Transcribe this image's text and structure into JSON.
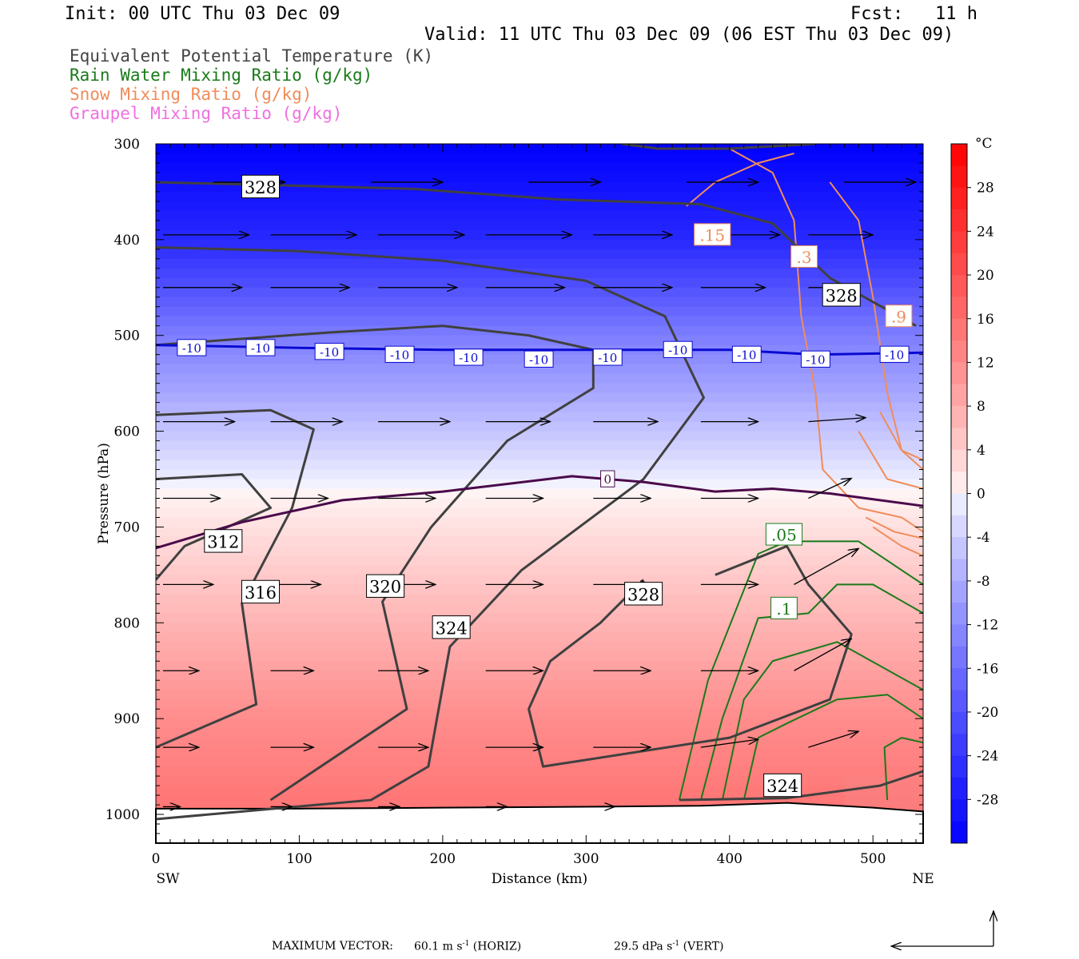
{
  "header": {
    "init": "Init: 00 UTC Thu 03 Dec 09",
    "fcst": "Fcst:   11 h",
    "valid": "Valid: 11 UTC Thu 03 Dec 09 (06 EST Thu 03 Dec 09)"
  },
  "legend": [
    {
      "label": "Equivalent Potential Temperature (K)",
      "color": "#444444"
    },
    {
      "label": "Rain Water Mixing Ratio (g/kg)",
      "color": "#1a7a1a"
    },
    {
      "label": "Snow Mixing Ratio (g/kg)",
      "color": "#f08c5a"
    },
    {
      "label": "Graupel Mixing Ratio (g/kg)",
      "color": "#f070e0"
    }
  ],
  "chart_data": {
    "type": "cross-section",
    "xlabel": "Distance (km)",
    "ylabel": "Pressure (hPa)",
    "x_ticks": [
      "0",
      "100",
      "200",
      "300",
      "400",
      "500"
    ],
    "y_ticks": [
      "300",
      "400",
      "500",
      "600",
      "700",
      "800",
      "900",
      "1000"
    ],
    "xlim": [
      0,
      535
    ],
    "ylim": [
      1030,
      300
    ],
    "x_ends": {
      "left": "SW",
      "right": "NE"
    },
    "colorbar": {
      "unit": "°C",
      "labels": [
        "28",
        "24",
        "20",
        "16",
        "12",
        "8",
        "4",
        "0",
        "-4",
        "-8",
        "-12",
        "-16",
        "-20",
        "-24",
        "-28"
      ],
      "range": [
        -32,
        32
      ],
      "cold_color": "#0000ff",
      "warm_color": "#ff0000"
    },
    "temperature_profile": [
      {
        "p": 300,
        "t": -32
      },
      {
        "p": 400,
        "t": -26
      },
      {
        "p": 500,
        "t": -14
      },
      {
        "p": 600,
        "t": -5
      },
      {
        "p": 660,
        "t": 0
      },
      {
        "p": 700,
        "t": 2
      },
      {
        "p": 800,
        "t": 7
      },
      {
        "p": 900,
        "t": 12
      },
      {
        "p": 990,
        "t": 15
      }
    ],
    "theta_e_contours": [
      {
        "value": "328",
        "points": [
          [
            0,
            340
          ],
          [
            80,
            343
          ],
          [
            180,
            347
          ],
          [
            280,
            358
          ],
          [
            380,
            363
          ],
          [
            430,
            383
          ],
          [
            470,
            440
          ],
          [
            530,
            490
          ]
        ]
      },
      {
        "value": "324",
        "points": [
          [
            0,
            408
          ],
          [
            100,
            412
          ],
          [
            200,
            422
          ],
          [
            300,
            443
          ],
          [
            355,
            480
          ],
          [
            382,
            565
          ],
          [
            340,
            650
          ],
          [
            255,
            745
          ],
          [
            205,
            825
          ],
          [
            190,
            950
          ],
          [
            150,
            985
          ],
          [
            0,
            1005
          ]
        ]
      },
      {
        "value": "320",
        "points": [
          [
            0,
            510
          ],
          [
            120,
            497
          ],
          [
            200,
            490
          ],
          [
            260,
            500
          ],
          [
            305,
            515
          ],
          [
            305,
            555
          ],
          [
            245,
            610
          ],
          [
            192,
            700
          ],
          [
            158,
            778
          ],
          [
            175,
            890
          ],
          [
            80,
            985
          ]
        ]
      },
      {
        "value": "316",
        "points": [
          [
            0,
            583
          ],
          [
            80,
            578
          ],
          [
            110,
            598
          ],
          [
            95,
            680
          ],
          [
            60,
            780
          ],
          [
            70,
            885
          ],
          [
            0,
            930
          ]
        ]
      },
      {
        "value": "312",
        "points": [
          [
            0,
            650
          ],
          [
            60,
            645
          ],
          [
            80,
            680
          ],
          [
            20,
            720
          ],
          [
            0,
            755
          ]
        ]
      },
      {
        "value": "328",
        "points": [
          [
            390,
            750
          ],
          [
            440,
            720
          ],
          [
            455,
            760
          ],
          [
            485,
            812
          ],
          [
            470,
            880
          ],
          [
            400,
            920
          ],
          [
            270,
            950
          ],
          [
            260,
            890
          ],
          [
            275,
            840
          ],
          [
            310,
            800
          ],
          [
            340,
            755
          ]
        ]
      },
      {
        "value": "324",
        "points": [
          [
            365,
            985
          ],
          [
            440,
            983
          ],
          [
            505,
            970
          ],
          [
            535,
            955
          ]
        ]
      }
    ],
    "isotherm_contours": [
      {
        "value": "-10",
        "color": "#0a0ad2",
        "points": [
          [
            0,
            510
          ],
          [
            100,
            513
          ],
          [
            200,
            515
          ],
          [
            300,
            515
          ],
          [
            400,
            515
          ],
          [
            460,
            520
          ],
          [
            535,
            518
          ]
        ]
      },
      {
        "value": "0",
        "color": "#4a0a4a",
        "points": [
          [
            0,
            722
          ],
          [
            60,
            695
          ],
          [
            130,
            672
          ],
          [
            200,
            663
          ],
          [
            290,
            647
          ],
          [
            340,
            653
          ],
          [
            390,
            663
          ],
          [
            430,
            660
          ],
          [
            470,
            665
          ],
          [
            535,
            678
          ]
        ]
      }
    ],
    "rain_contours": [
      {
        "value": ".05",
        "points": [
          [
            365,
            985
          ],
          [
            385,
            860
          ],
          [
            420,
            728
          ],
          [
            440,
            715
          ],
          [
            490,
            715
          ],
          [
            535,
            760
          ]
        ]
      },
      {
        "value": ".1",
        "points": [
          [
            380,
            985
          ],
          [
            395,
            900
          ],
          [
            420,
            795
          ],
          [
            455,
            790
          ],
          [
            475,
            760
          ],
          [
            500,
            760
          ],
          [
            535,
            790
          ]
        ]
      },
      {
        "value": "",
        "points": [
          [
            395,
            985
          ],
          [
            410,
            880
          ],
          [
            430,
            840
          ],
          [
            475,
            820
          ],
          [
            535,
            870
          ]
        ]
      },
      {
        "value": "",
        "points": [
          [
            410,
            985
          ],
          [
            420,
            920
          ],
          [
            440,
            905
          ],
          [
            475,
            880
          ],
          [
            510,
            875
          ],
          [
            535,
            900
          ]
        ]
      }
    ],
    "snow_contours": [
      {
        "value": ".15",
        "points": [
          [
            370,
            365
          ],
          [
            390,
            340
          ],
          [
            420,
            320
          ],
          [
            445,
            310
          ]
        ]
      },
      {
        "value": ".3",
        "points": [
          [
            400,
            305
          ],
          [
            430,
            330
          ],
          [
            445,
            380
          ],
          [
            450,
            480
          ],
          [
            460,
            560
          ],
          [
            465,
            640
          ],
          [
            490,
            680
          ],
          [
            520,
            690
          ],
          [
            535,
            705
          ]
        ]
      },
      {
        "value": ".9",
        "points": [
          [
            470,
            340
          ],
          [
            490,
            380
          ],
          [
            500,
            460
          ],
          [
            510,
            560
          ],
          [
            520,
            620
          ],
          [
            535,
            640
          ]
        ]
      }
    ],
    "wind_rows": [
      {
        "p": 340,
        "vectors": [
          {
            "x": 40,
            "dx": 50,
            "dy": 0
          },
          {
            "x": 150,
            "dx": 50,
            "dy": 0
          },
          {
            "x": 260,
            "dx": 50,
            "dy": 0
          },
          {
            "x": 370,
            "dx": 50,
            "dy": 0
          },
          {
            "x": 480,
            "dx": 50,
            "dy": 0
          }
        ]
      },
      {
        "p": 395,
        "vectors": [
          {
            "x": 5,
            "dx": 60,
            "dy": 0
          },
          {
            "x": 80,
            "dx": 60,
            "dy": 0
          },
          {
            "x": 155,
            "dx": 60,
            "dy": 0
          },
          {
            "x": 230,
            "dx": 60,
            "dy": 0
          },
          {
            "x": 305,
            "dx": 55,
            "dy": 0
          },
          {
            "x": 380,
            "dx": 55,
            "dy": 0
          },
          {
            "x": 455,
            "dx": 45,
            "dy": 0
          }
        ]
      },
      {
        "p": 450,
        "vectors": [
          {
            "x": 5,
            "dx": 55,
            "dy": 0
          },
          {
            "x": 80,
            "dx": 55,
            "dy": 0
          },
          {
            "x": 155,
            "dx": 55,
            "dy": 0
          },
          {
            "x": 230,
            "dx": 55,
            "dy": 0
          },
          {
            "x": 305,
            "dx": 55,
            "dy": 0
          },
          {
            "x": 380,
            "dx": 45,
            "dy": 0
          },
          {
            "x": 455,
            "dx": 35,
            "dy": 0
          }
        ]
      },
      {
        "p": 590,
        "vectors": [
          {
            "x": 5,
            "dx": 50,
            "dy": 0
          },
          {
            "x": 80,
            "dx": 50,
            "dy": 0
          },
          {
            "x": 155,
            "dx": 50,
            "dy": 0
          },
          {
            "x": 230,
            "dx": 45,
            "dy": 0
          },
          {
            "x": 305,
            "dx": 45,
            "dy": 0
          },
          {
            "x": 380,
            "dx": 40,
            "dy": 0
          },
          {
            "x": 455,
            "dx": 40,
            "dy": -5
          }
        ]
      },
      {
        "p": 670,
        "vectors": [
          {
            "x": 5,
            "dx": 40,
            "dy": 0
          },
          {
            "x": 80,
            "dx": 40,
            "dy": 0
          },
          {
            "x": 155,
            "dx": 40,
            "dy": 0
          },
          {
            "x": 230,
            "dx": 40,
            "dy": 0
          },
          {
            "x": 305,
            "dx": 40,
            "dy": 0
          },
          {
            "x": 380,
            "dx": 40,
            "dy": 0
          },
          {
            "x": 455,
            "dx": 30,
            "dy": -25
          }
        ]
      },
      {
        "p": 760,
        "vectors": [
          {
            "x": 5,
            "dx": 35,
            "dy": 0
          },
          {
            "x": 80,
            "dx": 35,
            "dy": 0
          },
          {
            "x": 155,
            "dx": 40,
            "dy": 0
          },
          {
            "x": 230,
            "dx": 40,
            "dy": 0
          },
          {
            "x": 305,
            "dx": 40,
            "dy": 0
          },
          {
            "x": 380,
            "dx": 40,
            "dy": 0
          },
          {
            "x": 445,
            "dx": 45,
            "dy": -45
          }
        ]
      },
      {
        "p": 850,
        "vectors": [
          {
            "x": 5,
            "dx": 25,
            "dy": 0
          },
          {
            "x": 80,
            "dx": 30,
            "dy": 0
          },
          {
            "x": 155,
            "dx": 35,
            "dy": 0
          },
          {
            "x": 230,
            "dx": 40,
            "dy": 0
          },
          {
            "x": 305,
            "dx": 40,
            "dy": 0
          },
          {
            "x": 380,
            "dx": 40,
            "dy": 0
          },
          {
            "x": 445,
            "dx": 40,
            "dy": -40
          }
        ]
      },
      {
        "p": 930,
        "vectors": [
          {
            "x": 5,
            "dx": 25,
            "dy": 0
          },
          {
            "x": 80,
            "dx": 30,
            "dy": 0
          },
          {
            "x": 155,
            "dx": 35,
            "dy": 0
          },
          {
            "x": 230,
            "dx": 40,
            "dy": 0
          },
          {
            "x": 305,
            "dx": 40,
            "dy": 0
          },
          {
            "x": 380,
            "dx": 40,
            "dy": -10
          },
          {
            "x": 455,
            "dx": 35,
            "dy": -20
          }
        ]
      },
      {
        "p": 992,
        "vectors": [
          {
            "x": 5,
            "dx": 12,
            "dy": 0
          },
          {
            "x": 80,
            "dx": 15,
            "dy": 0
          },
          {
            "x": 155,
            "dx": 15,
            "dy": 0
          },
          {
            "x": 230,
            "dx": 15,
            "dy": 0
          },
          {
            "x": 305,
            "dx": 15,
            "dy": 0
          }
        ]
      }
    ],
    "terrain": {
      "color": "#ffffff",
      "points": [
        [
          0,
          994
        ],
        [
          100,
          994
        ],
        [
          200,
          993
        ],
        [
          300,
          992
        ],
        [
          380,
          991
        ],
        [
          440,
          988
        ],
        [
          500,
          993
        ],
        [
          535,
          997
        ]
      ]
    }
  },
  "footer": {
    "max_vector_label": "MAXIMUM VECTOR:",
    "horiz_value": "60.1 m s",
    "horiz_exp": "-1",
    "horiz_suffix": " (HORIZ)",
    "vert_value": "29.5 dPa s",
    "vert_exp": "-1",
    "vert_suffix": " (VERT)"
  }
}
